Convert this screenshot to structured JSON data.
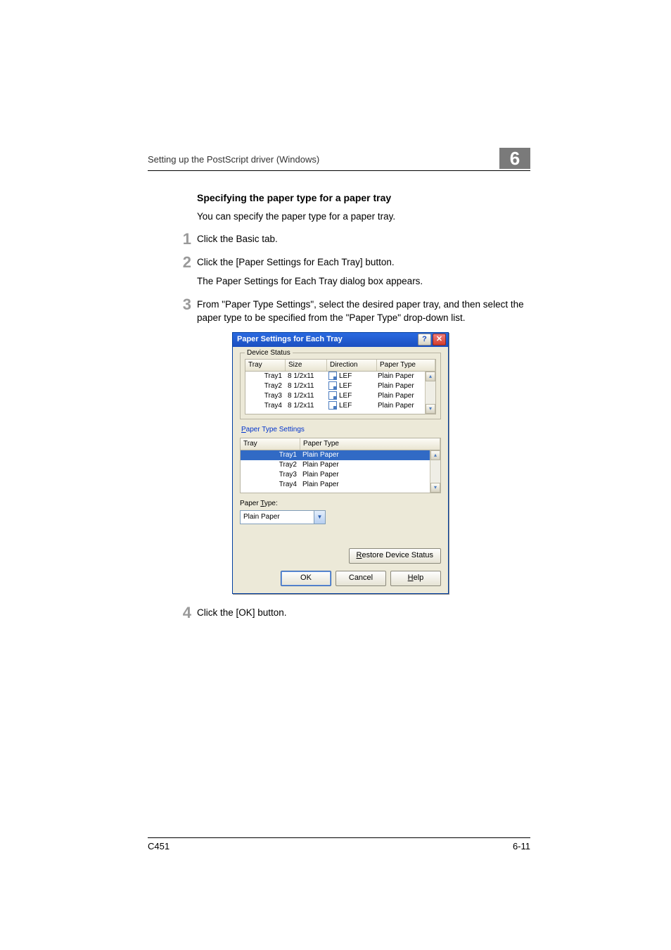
{
  "header": {
    "running_head": "Setting up the PostScript driver (Windows)",
    "chapter_number": "6"
  },
  "section": {
    "title": "Specifying the paper type for a paper tray",
    "intro": "You can specify the paper type for a paper tray."
  },
  "steps": [
    {
      "num": "1",
      "text": "Click the Basic tab."
    },
    {
      "num": "2",
      "text": "Click the [Paper Settings for Each Tray] button.",
      "sub": "The Paper Settings for Each Tray dialog box appears."
    },
    {
      "num": "3",
      "text": "From \"Paper Type Settings\", select the desired paper tray, and then select the paper type to be specified from the \"Paper Type\" drop-down list."
    },
    {
      "num": "4",
      "text": "Click the [OK] button."
    }
  ],
  "dialog": {
    "title": "Paper Settings for Each Tray",
    "help_glyph": "?",
    "close_glyph": "✕",
    "device_status": {
      "label": "Device Status",
      "columns": {
        "tray": "Tray",
        "size": "Size",
        "direction": "Direction",
        "paper_type": "Paper Type"
      },
      "col_widths": {
        "tray": 48,
        "size": 50,
        "direction": 62,
        "paper_type": 92
      },
      "rows": [
        {
          "tray": "Tray1",
          "size": "8 1/2x11",
          "direction": "LEF",
          "paper_type": "Plain Paper"
        },
        {
          "tray": "Tray2",
          "size": "8 1/2x11",
          "direction": "LEF",
          "paper_type": "Plain Paper"
        },
        {
          "tray": "Tray3",
          "size": "8 1/2x11",
          "direction": "LEF",
          "paper_type": "Plain Paper"
        },
        {
          "tray": "Tray4",
          "size": "8 1/2x11",
          "direction": "LEF",
          "paper_type": "Plain Paper"
        }
      ]
    },
    "paper_type_settings": {
      "link_label_pre": "P",
      "link_label_rest": "aper Type Settings",
      "columns": {
        "tray": "Tray",
        "paper_type": "Paper Type"
      },
      "col_widths": {
        "tray": 76,
        "paper_type": 176
      },
      "rows": [
        {
          "tray": "Tray1",
          "paper_type": "Plain Paper",
          "selected": true
        },
        {
          "tray": "Tray2",
          "paper_type": "Plain Paper",
          "selected": false
        },
        {
          "tray": "Tray3",
          "paper_type": "Plain Paper",
          "selected": false
        },
        {
          "tray": "Tray4",
          "paper_type": "Plain Paper",
          "selected": false
        }
      ]
    },
    "paper_type_field": {
      "label_pre": "Paper ",
      "label_u": "T",
      "label_post": "ype:",
      "value": "Plain Paper"
    },
    "restore_btn_pre": "R",
    "restore_btn_rest": "estore Device Status",
    "buttons": {
      "ok": "OK",
      "cancel": "Cancel",
      "help_pre": "H",
      "help_rest": "elp"
    },
    "scroll": {
      "up": "▴",
      "down": "▾"
    }
  },
  "footer": {
    "model": "C451",
    "page": "6-11"
  },
  "colors": {
    "page_bg": "#ffffff",
    "dlg_bg": "#ece9d8",
    "titlebar_start": "#2a6ae0",
    "titlebar_end": "#1b4fc0",
    "selection": "#316ac5",
    "link": "#0033cc",
    "step_num": "#9a9a9a"
  }
}
